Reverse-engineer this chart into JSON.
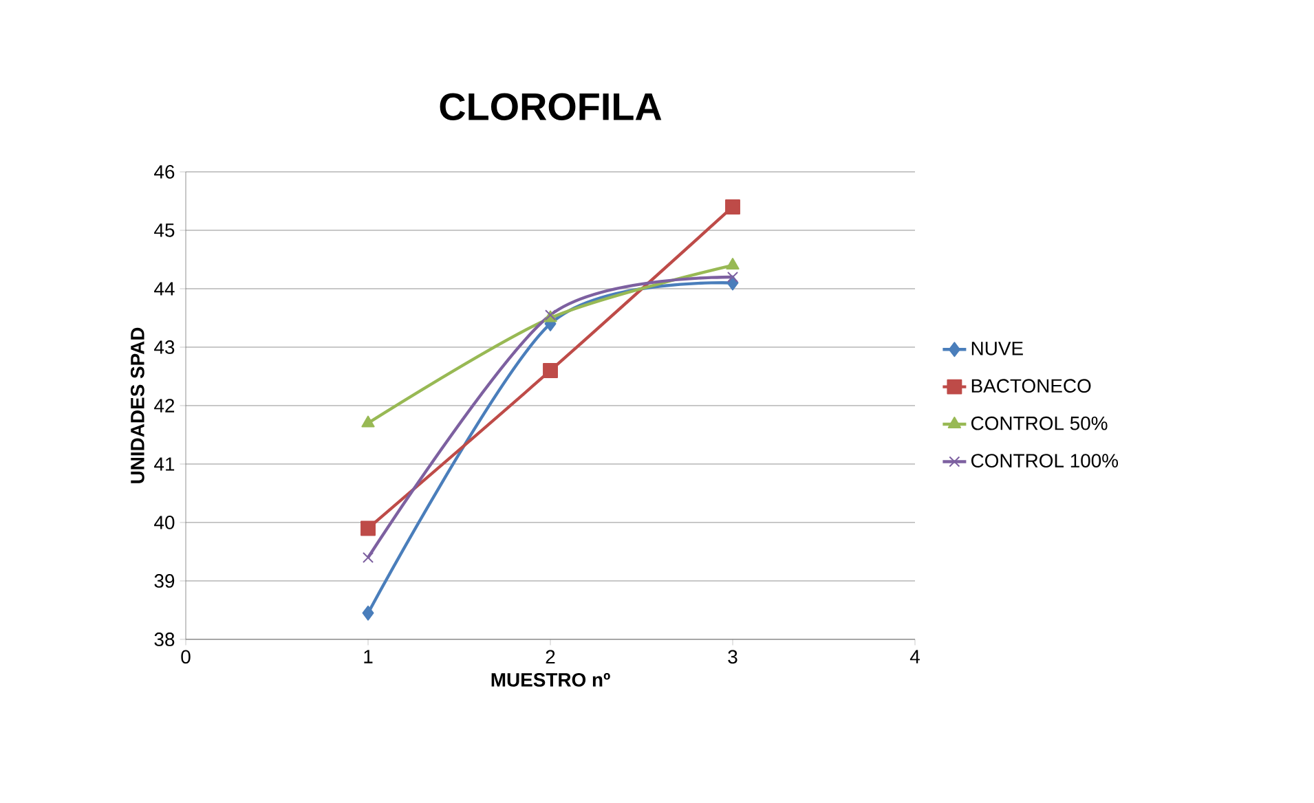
{
  "chart_data": {
    "type": "line",
    "title": "CLOROFILA",
    "xlabel": "MUESTRO nº",
    "ylabel": "UNIDADES SPAD",
    "xlim": [
      0,
      4
    ],
    "xticks": [
      0,
      1,
      2,
      3,
      4
    ],
    "ylim": [
      38,
      46
    ],
    "yticks": [
      38,
      39,
      40,
      41,
      42,
      43,
      44,
      45,
      46
    ],
    "x": [
      1,
      2,
      3
    ],
    "grid": "y",
    "legend": "right",
    "line_style": "solid",
    "series": [
      {
        "name": "NUVE",
        "color": "#4a7ebb",
        "marker": "diamond",
        "values": [
          38.45,
          43.4,
          44.1
        ]
      },
      {
        "name": "BACTONECO",
        "color": "#be4b48",
        "marker": "square",
        "values": [
          39.9,
          42.6,
          45.4
        ]
      },
      {
        "name": "CONTROL 50%",
        "color": "#98b954",
        "marker": "triangle",
        "values": [
          41.7,
          43.5,
          44.4
        ]
      },
      {
        "name": "CONTROL 100%",
        "color": "#7d60a0",
        "marker": "cross",
        "values": [
          39.4,
          43.55,
          44.2
        ]
      }
    ]
  }
}
